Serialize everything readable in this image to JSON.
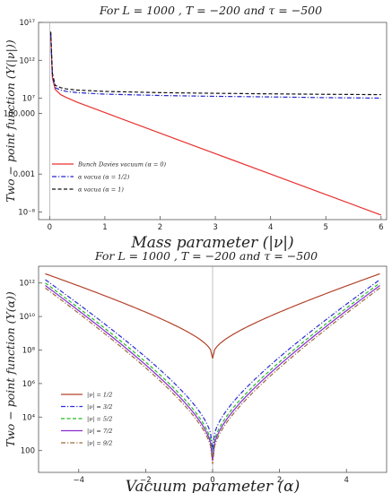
{
  "chart_data": [
    {
      "type": "line",
      "title": "For L = 1000 , T = −200 and τ = −500",
      "xlabel": "Mass parameter   (|ν|)",
      "ylabel": "Two − point function (Y(|ν|))",
      "xscale": "linear",
      "yscale": "log",
      "xlim": [
        -0.2,
        6.1
      ],
      "ylim": [
        1e-09,
        1e+17
      ],
      "xticks": [
        0,
        1,
        2,
        3,
        4,
        5,
        6
      ],
      "xtick_labels": [
        "0",
        "1",
        "2",
        "3",
        "4",
        "5",
        "6"
      ],
      "yticks": [
        1e-08,
        0.001,
        100000,
        10000000.0,
        1000000000000.0,
        1e+17
      ],
      "ytick_labels": [
        "10⁻⁸",
        "0.001",
        "100.000",
        "10⁷",
        "10¹²",
        "10¹⁷"
      ],
      "legend_position": "bottom-left",
      "series": [
        {
          "name": "Bunch Davies vacuum (α = 0)",
          "color": "#e8312f",
          "dash": "solid",
          "x": [
            0.02,
            0.05,
            0.1,
            0.2,
            0.3,
            0.5,
            1,
            2,
            3,
            4,
            5,
            6
          ],
          "y": [
            3000000000000000.0,
            5000000000.0,
            150000000.0,
            30000000.0,
            13000000.0,
            3000000.0,
            130000.0,
            250,
            0.5,
            0.001,
            2e-06,
            4e-09
          ]
        },
        {
          "name": "α vacua (α = 1/2)",
          "color": "#2323cc",
          "dash": "dashdot",
          "x": [
            0.02,
            0.05,
            0.1,
            0.2,
            0.3,
            0.5,
            1,
            2,
            3,
            4,
            5,
            6
          ],
          "y": [
            4000000000000000.0,
            10000000000.0,
            250000000.0,
            120000000.0,
            80000000.0,
            55000000.0,
            35000000.0,
            23000000.0,
            18000000.0,
            15000000.0,
            12000000.0,
            10500000.0
          ]
        },
        {
          "name": "α vacua (α = 1)",
          "color": "#111111",
          "dash": "dashed",
          "x": [
            0.02,
            0.05,
            0.1,
            0.2,
            0.3,
            0.5,
            1,
            2,
            3,
            4,
            5,
            6
          ],
          "y": [
            6000000000000000.0,
            20000000000.0,
            500000000.0,
            250000000.0,
            170000000.0,
            120000000.0,
            80000000.0,
            55000000.0,
            45000000.0,
            38000000.0,
            33000000.0,
            30000000.0
          ]
        }
      ]
    },
    {
      "type": "line",
      "title": "For L = 1000 , T = −200 and τ = −500",
      "xlabel": "Vacuum parameter  (α)",
      "ylabel": "Two − point function (Y(α))",
      "xscale": "linear",
      "yscale": "log",
      "xlim": [
        -5.2,
        5.2
      ],
      "ylim": [
        5,
        10000000000000.0
      ],
      "xticks": [
        -4,
        -2,
        0,
        2,
        4
      ],
      "xtick_labels": [
        "−4",
        "−2",
        "0",
        "2",
        "4"
      ],
      "yticks": [
        100,
        10000,
        1000000,
        100000000,
        10000000000,
        1000000000000
      ],
      "ytick_labels": [
        "100",
        "10⁴",
        "10⁶",
        "10⁸",
        "10¹⁰",
        "10¹²"
      ],
      "legend_position": "bottom-left",
      "series": [
        {
          "name": "|ν| = 1/2",
          "color": "#b3432b",
          "dash": "solid",
          "vmin_log": 7.5,
          "vmax_log": 12.55
        },
        {
          "name": "|ν| = 3/2",
          "color": "#2b2bd4",
          "dash": "dashdot",
          "vmin_log": 2.0,
          "vmax_log": 12.2
        },
        {
          "name": "|ν| = 5/2",
          "color": "#22bb22",
          "dash": "dashed",
          "vmin_log": 1.6,
          "vmax_log": 12.0
        },
        {
          "name": "|ν| = 7/2",
          "color": "#8a2bd0",
          "dash": "solid",
          "vmin_log": 1.4,
          "vmax_log": 11.85
        },
        {
          "name": "|ν| = 9/2",
          "color": "#9b6b3a",
          "dash": "dashdot",
          "vmin_log": 1.2,
          "vmax_log": 11.7
        }
      ]
    }
  ]
}
